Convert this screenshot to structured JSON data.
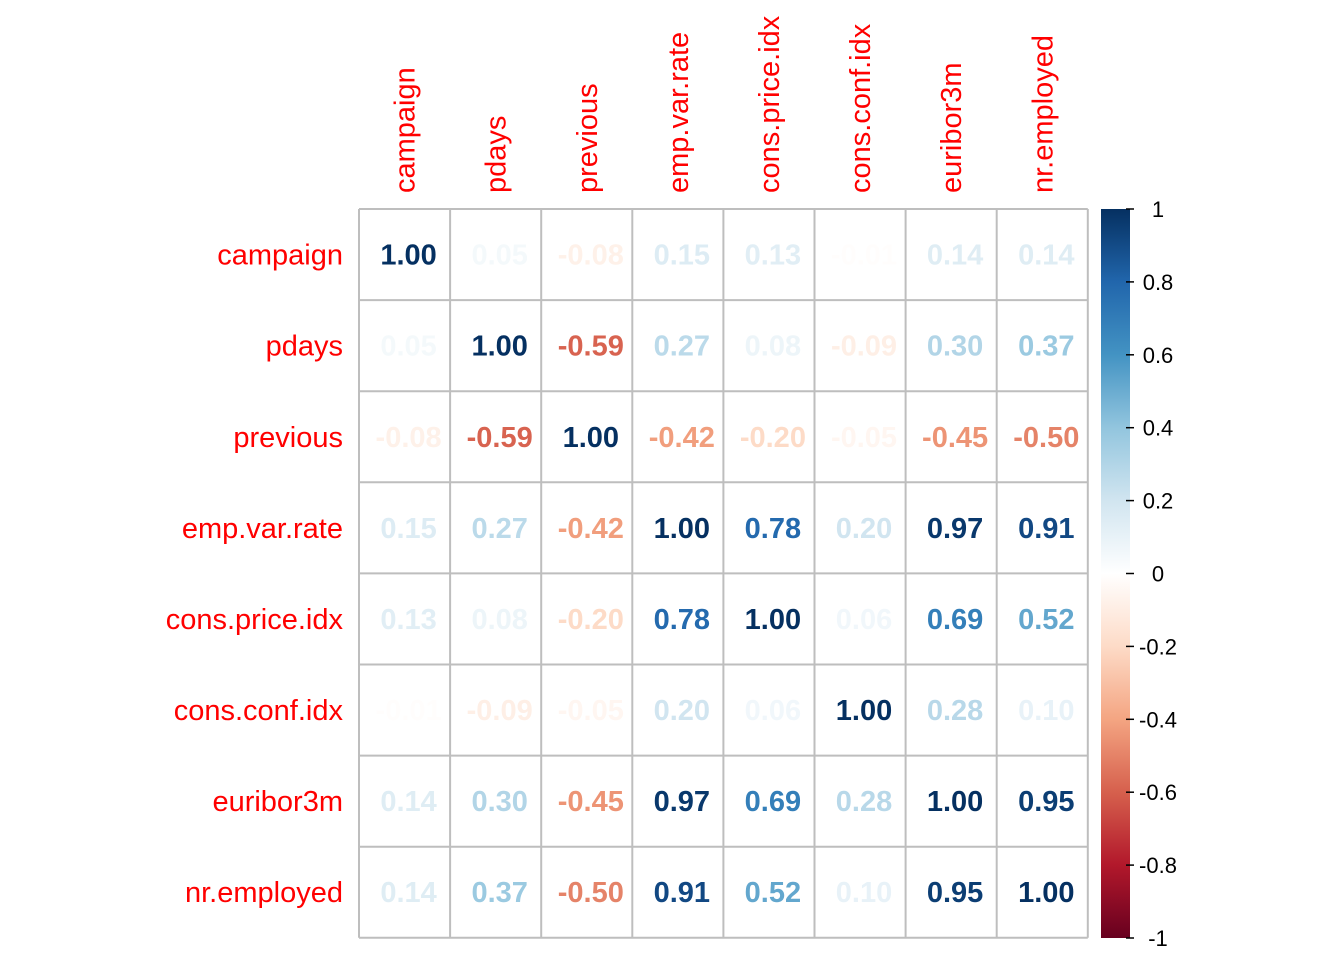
{
  "chart_data": {
    "type": "heatmap",
    "title": "",
    "variables": [
      "campaign",
      "pdays",
      "previous",
      "emp.var.rate",
      "cons.price.idx",
      "cons.conf.idx",
      "euribor3m",
      "nr.employed"
    ],
    "matrix": [
      [
        1.0,
        0.05,
        -0.08,
        0.15,
        0.13,
        -0.01,
        0.14,
        0.14
      ],
      [
        0.05,
        1.0,
        -0.59,
        0.27,
        0.08,
        -0.09,
        0.3,
        0.37
      ],
      [
        -0.08,
        -0.59,
        1.0,
        -0.42,
        -0.2,
        -0.05,
        -0.45,
        -0.5
      ],
      [
        0.15,
        0.27,
        -0.42,
        1.0,
        0.78,
        0.2,
        0.97,
        0.91
      ],
      [
        0.13,
        0.08,
        -0.2,
        0.78,
        1.0,
        0.06,
        0.69,
        0.52
      ],
      [
        -0.01,
        -0.09,
        -0.05,
        0.2,
        0.06,
        1.0,
        0.28,
        0.1
      ],
      [
        0.14,
        0.3,
        -0.45,
        0.97,
        0.69,
        0.28,
        1.0,
        0.95
      ],
      [
        0.14,
        0.37,
        -0.5,
        0.91,
        0.52,
        0.1,
        0.95,
        1.0
      ]
    ],
    "value_labels": [
      [
        "1.00",
        "0.05",
        "-0.08",
        "0.15",
        "0.13",
        "-0.01",
        "0.14",
        "0.14"
      ],
      [
        "0.05",
        "1.00",
        "-0.59",
        "0.27",
        "0.08",
        "-0.09",
        "0.30",
        "0.37"
      ],
      [
        "-0.08",
        "-0.59",
        "1.00",
        "-0.42",
        "-0.20",
        "-0.05",
        "-0.45",
        "-0.50"
      ],
      [
        "0.15",
        "0.27",
        "-0.42",
        "1.00",
        "0.78",
        "0.20",
        "0.97",
        "0.91"
      ],
      [
        "0.13",
        "0.08",
        "-0.20",
        "0.78",
        "1.00",
        "0.06",
        "0.69",
        "0.52"
      ],
      [
        "-0.01",
        "-0.09",
        "-0.05",
        "0.20",
        "0.06",
        "1.00",
        "0.28",
        "0.10"
      ],
      [
        "0.14",
        "0.30",
        "-0.45",
        "0.97",
        "0.69",
        "0.28",
        "1.00",
        "0.95"
      ],
      [
        "0.14",
        "0.37",
        "-0.50",
        "0.91",
        "0.52",
        "0.10",
        "0.95",
        "1.00"
      ]
    ],
    "colorbar": {
      "range": [
        -1,
        1
      ],
      "ticks": [
        1,
        0.8,
        0.6,
        0.4,
        0.2,
        0,
        -0.2,
        -0.4,
        -0.6,
        -0.8,
        -1
      ],
      "tick_labels": [
        "1",
        "0.8",
        "0.6",
        "0.4",
        "0.2",
        "0",
        "-0.2",
        "-0.4",
        "-0.6",
        "-0.8",
        "-1"
      ],
      "colors": [
        "#67001F",
        "#B2182B",
        "#D6604D",
        "#F4A582",
        "#FDDBC7",
        "#FFFFFF",
        "#D1E5F0",
        "#92C5DE",
        "#4393C3",
        "#2166AC",
        "#053061"
      ]
    },
    "label_color": "#FF0000",
    "grid_color": "#BEBEBE"
  }
}
